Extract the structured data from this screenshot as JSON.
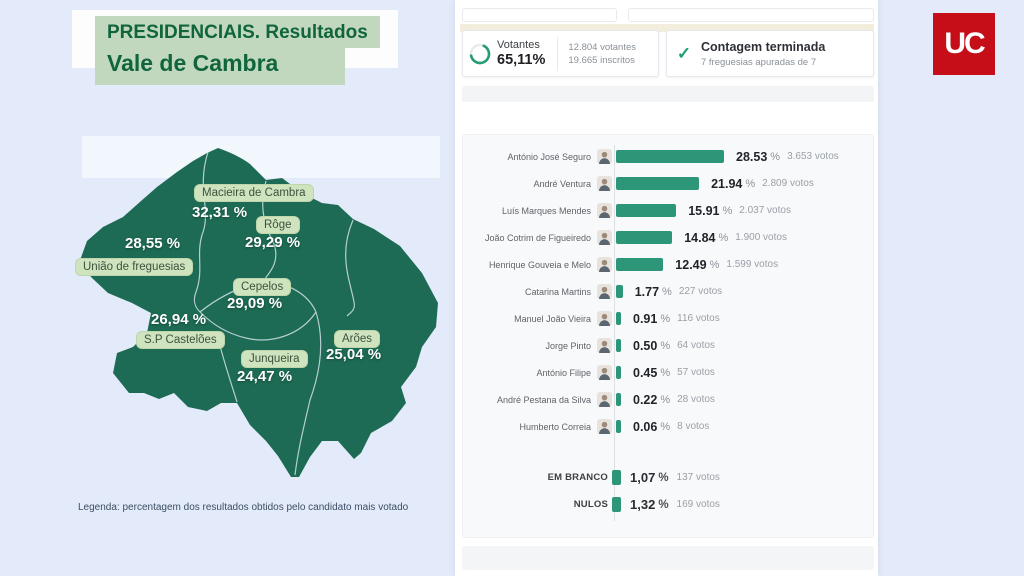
{
  "slide": {
    "title_line1": "PRESIDENCIAIS. Resultados",
    "title_line2": "Vale de Cambra",
    "legend": "Legenda: percentagem dos resultados obtidos pelo candidato mais votado"
  },
  "logo": {
    "text": "UC"
  },
  "stats": {
    "votantes": {
      "label": "Votantes",
      "pct": "65,11%",
      "ring_pct": 65.11,
      "line1": "12.804 votantes",
      "line2": "19.665 inscritos"
    },
    "contagem": {
      "title": "Contagem terminada",
      "subtitle": "7 freguesias apuradas de 7"
    }
  },
  "map": {
    "fill_color": "#1d6b54",
    "regions": [
      {
        "name": "Macieira de Cambra",
        "pct": "32,31 %"
      },
      {
        "name": "Rôge",
        "pct": "29,29 %"
      },
      {
        "name": "União de freguesias",
        "pct": "28,55 %"
      },
      {
        "name": "Cepelos",
        "pct": "29,09 %"
      },
      {
        "name": "S.P Castelões",
        "pct": "26,94 %"
      },
      {
        "name": "Junqueira",
        "pct": "24,47 %"
      },
      {
        "name": "Arões",
        "pct": "25,04 %"
      }
    ]
  },
  "chart_data": {
    "type": "bar",
    "orientation": "horizontal",
    "unit": "%",
    "bar_color": "#2e9678",
    "xlim": [
      0,
      30
    ],
    "series": [
      {
        "name": "António José Seguro",
        "pct": 28.53,
        "pct_label": "28.53",
        "votes": "3.653 votos"
      },
      {
        "name": "André Ventura",
        "pct": 21.94,
        "pct_label": "21.94",
        "votes": "2.809 votos"
      },
      {
        "name": "Luís Marques Mendes",
        "pct": 15.91,
        "pct_label": "15.91",
        "votes": "2.037 votos"
      },
      {
        "name": "João Cotrim de Figueiredo",
        "pct": 14.84,
        "pct_label": "14.84",
        "votes": "1.900 votos"
      },
      {
        "name": "Henrique Gouveia e Melo",
        "pct": 12.49,
        "pct_label": "12.49",
        "votes": "1.599 votos"
      },
      {
        "name": "Catarina Martins",
        "pct": 1.77,
        "pct_label": "1.77",
        "votes": "227 votos"
      },
      {
        "name": "Manuel João Vieira",
        "pct": 0.91,
        "pct_label": "0.91",
        "votes": "116 votos"
      },
      {
        "name": "Jorge Pinto",
        "pct": 0.5,
        "pct_label": "0.50",
        "votes": "64 votos"
      },
      {
        "name": "António Filipe",
        "pct": 0.45,
        "pct_label": "0.45",
        "votes": "57 votos"
      },
      {
        "name": "André Pestana da Silva",
        "pct": 0.22,
        "pct_label": "0.22",
        "votes": "28 votos"
      },
      {
        "name": "Humberto Correia",
        "pct": 0.06,
        "pct_label": "0.06",
        "votes": "8 votos"
      }
    ],
    "others": [
      {
        "name": "EM BRANCO",
        "pct": 1.07,
        "pct_label": "1,07",
        "votes": "137 votos"
      },
      {
        "name": "NULOS",
        "pct": 1.32,
        "pct_label": "1,32",
        "votes": "169 votos"
      }
    ]
  }
}
